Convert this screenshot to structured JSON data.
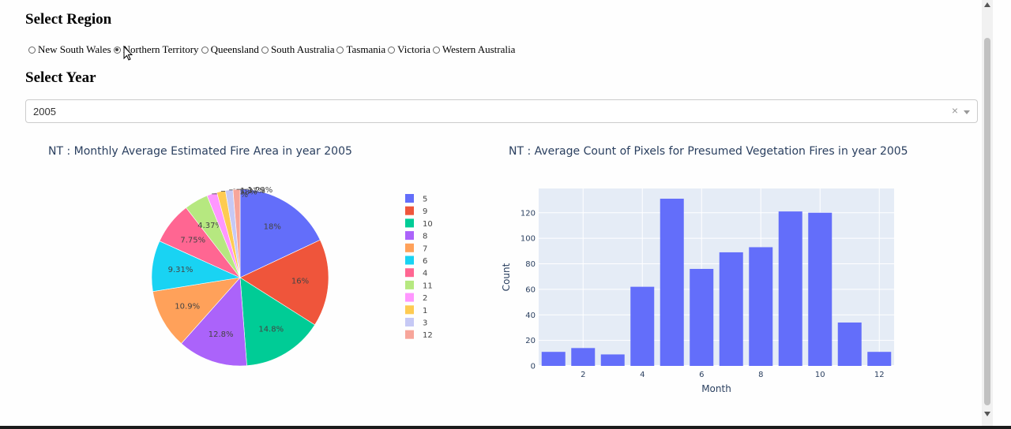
{
  "region": {
    "heading": "Select Region",
    "options": [
      "New South Wales",
      "Northern Territory",
      "Queensland",
      "South Australia",
      "Tasmania",
      "Victoria",
      "Western Australia"
    ],
    "selected_index": 1
  },
  "year": {
    "heading": "Select Year",
    "value": "2005",
    "clear_glyph": "×"
  },
  "chart_data": [
    {
      "type": "pie",
      "title": "NT : Monthly Average Estimated Fire Area in year 2005",
      "labels": [
        "5",
        "9",
        "10",
        "8",
        "7",
        "6",
        "4",
        "11",
        "2",
        "1",
        "3",
        "12"
      ],
      "values": [
        18,
        16,
        14.8,
        12.8,
        10.9,
        9.31,
        7.75,
        4.37,
        1.86,
        1.58,
        1.37,
        1.29
      ],
      "text_labels": [
        "18%",
        "16%",
        "14.8%",
        "12.8%",
        "10.9%",
        "9.31%",
        "7.75%",
        "4.37%",
        "1.86%",
        "1.58%",
        "1.37%",
        "1.29%"
      ],
      "colors": [
        "#636efa",
        "#ef553b",
        "#00cc96",
        "#ab63fa",
        "#ffa15a",
        "#19d3f3",
        "#ff6692",
        "#b6e880",
        "#ff97ff",
        "#fecb52",
        "#c6c9f5",
        "#f7a59a"
      ],
      "legend_position": "right"
    },
    {
      "type": "bar",
      "title": "NT : Average Count of Pixels for Presumed Vegetation Fires in year 2005",
      "xlabel": "Month",
      "ylabel": "Count",
      "x": [
        1,
        2,
        3,
        4,
        5,
        6,
        7,
        8,
        9,
        10,
        11,
        12
      ],
      "values": [
        11,
        14,
        9,
        62,
        131,
        76,
        89,
        93,
        121,
        120,
        34,
        11
      ],
      "xticks": [
        2,
        4,
        6,
        8,
        10,
        12
      ],
      "yticks": [
        0,
        20,
        40,
        60,
        80,
        100,
        120
      ],
      "xlim": [
        0.5,
        12.5
      ],
      "ylim": [
        0,
        139
      ],
      "bar_color": "#636efa",
      "plot_bg": "#e5ecf6",
      "grid": true
    }
  ]
}
